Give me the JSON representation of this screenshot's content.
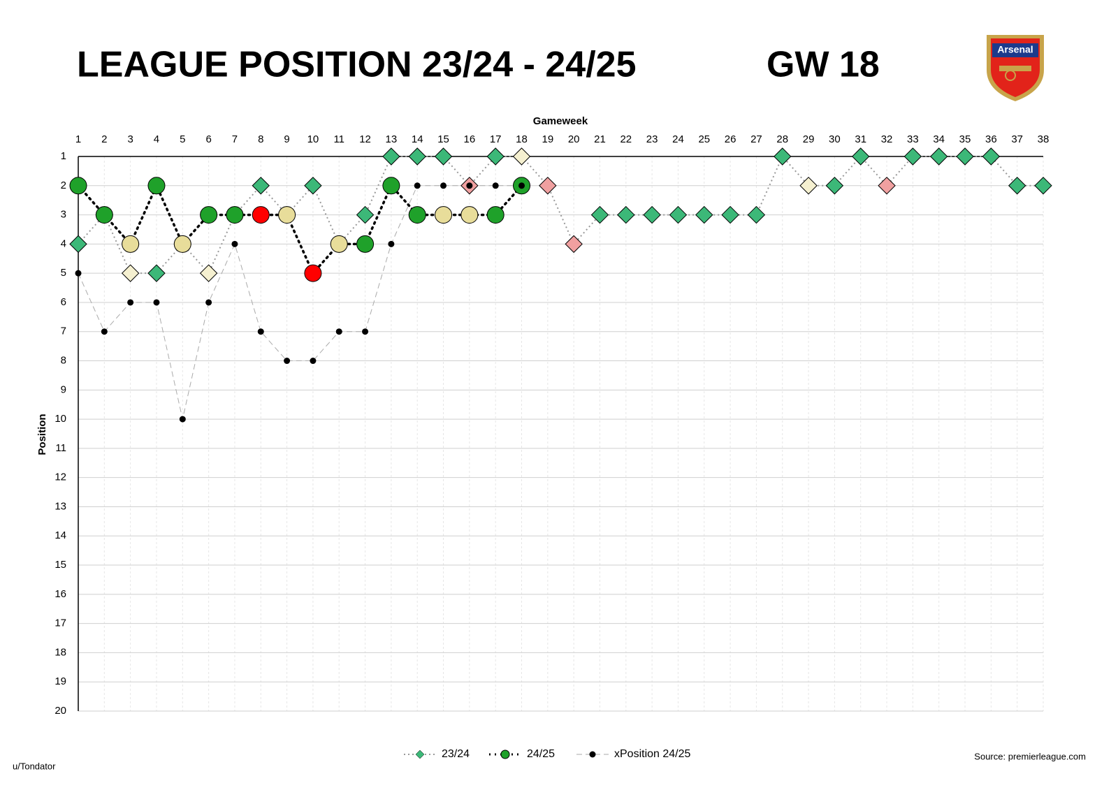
{
  "chart_data": {
    "type": "line",
    "title": "LEAGUE POSITION 23/24 - 24/25",
    "subtitle": "GW 18",
    "logo_text": "Arsenal",
    "x_label": "Gameweek",
    "y_label": "Position",
    "credit": "u/Tondator",
    "source": "Source: premierleague.com",
    "categories": [
      1,
      2,
      3,
      4,
      5,
      6,
      7,
      8,
      9,
      10,
      11,
      12,
      13,
      14,
      15,
      16,
      17,
      18,
      19,
      20,
      21,
      22,
      23,
      24,
      25,
      26,
      27,
      28,
      29,
      30,
      31,
      32,
      33,
      34,
      35,
      36,
      37,
      38
    ],
    "ylim": [
      1,
      20
    ],
    "yticks": [
      1,
      2,
      3,
      4,
      5,
      6,
      7,
      8,
      9,
      10,
      11,
      12,
      13,
      14,
      15,
      16,
      17,
      18,
      19,
      20
    ],
    "y_inverted": true,
    "grid": true,
    "legend": "bottom",
    "series": [
      {
        "name": "23/24",
        "marker": "diamond",
        "color": "#999999",
        "values": [
          4,
          3,
          5,
          5,
          4,
          5,
          3,
          2,
          3,
          2,
          4,
          3,
          1,
          1,
          1,
          2,
          1,
          1,
          2,
          4,
          3,
          3,
          3,
          3,
          3,
          3,
          3,
          1,
          2,
          2,
          1,
          2,
          1,
          1,
          1,
          1,
          2,
          2
        ],
        "point_colors": [
          "#3cb878",
          "#3cb878",
          "#f5f0d0",
          "#3cb878",
          "#3cb878",
          "#f5f0d0",
          "#3cb878",
          "#3cb878",
          "#f5f0d0",
          "#3cb878",
          "#f0a0a0",
          "#3cb878",
          "#3cb878",
          "#3cb878",
          "#3cb878",
          "#f0a0a0",
          "#3cb878",
          "#f5f0d0",
          "#f0a0a0",
          "#f0a0a0",
          "#3cb878",
          "#3cb878",
          "#3cb878",
          "#3cb878",
          "#3cb878",
          "#3cb878",
          "#3cb878",
          "#3cb878",
          "#f5f0d0",
          "#3cb878",
          "#3cb878",
          "#f0a0a0",
          "#3cb878",
          "#3cb878",
          "#3cb878",
          "#3cb878",
          "#3cb878",
          "#3cb878"
        ]
      },
      {
        "name": "24/25",
        "marker": "circle",
        "color": "#000000",
        "values": [
          2,
          3,
          4,
          2,
          4,
          3,
          3,
          3,
          3,
          5,
          4,
          4,
          2,
          3,
          3,
          3,
          3,
          2,
          null,
          null,
          null,
          null,
          null,
          null,
          null,
          null,
          null,
          null,
          null,
          null,
          null,
          null,
          null,
          null,
          null,
          null,
          null,
          null
        ],
        "point_colors": [
          "#1fa12a",
          "#1fa12a",
          "#e8dd9a",
          "#1fa12a",
          "#e8dd9a",
          "#1fa12a",
          "#1fa12a",
          "#ff0000",
          "#e8dd9a",
          "#ff0000",
          "#e8dd9a",
          "#1fa12a",
          "#1fa12a",
          "#1fa12a",
          "#e8dd9a",
          "#e8dd9a",
          "#1fa12a",
          "#1fa12a",
          null,
          null,
          null,
          null,
          null,
          null,
          null,
          null,
          null,
          null,
          null,
          null,
          null,
          null,
          null,
          null,
          null,
          null,
          null,
          null
        ]
      },
      {
        "name": "xPosition 24/25",
        "marker": "dot",
        "color": "#aaaaaa",
        "values": [
          5,
          7,
          6,
          6,
          10,
          6,
          4,
          7,
          8,
          8,
          7,
          7,
          4,
          2,
          2,
          2,
          2,
          2,
          null,
          null,
          null,
          null,
          null,
          null,
          null,
          null,
          null,
          null,
          null,
          null,
          null,
          null,
          null,
          null,
          null,
          null,
          null,
          null
        ],
        "point_colors": [
          "#000000",
          "#000000",
          "#000000",
          "#000000",
          "#000000",
          "#000000",
          "#000000",
          "#000000",
          "#000000",
          "#000000",
          "#000000",
          "#000000",
          "#000000",
          "#000000",
          "#000000",
          "#000000",
          "#000000",
          "#000000",
          null,
          null,
          null,
          null,
          null,
          null,
          null,
          null,
          null,
          null,
          null,
          null,
          null,
          null,
          null,
          null,
          null,
          null,
          null,
          null
        ]
      }
    ]
  }
}
